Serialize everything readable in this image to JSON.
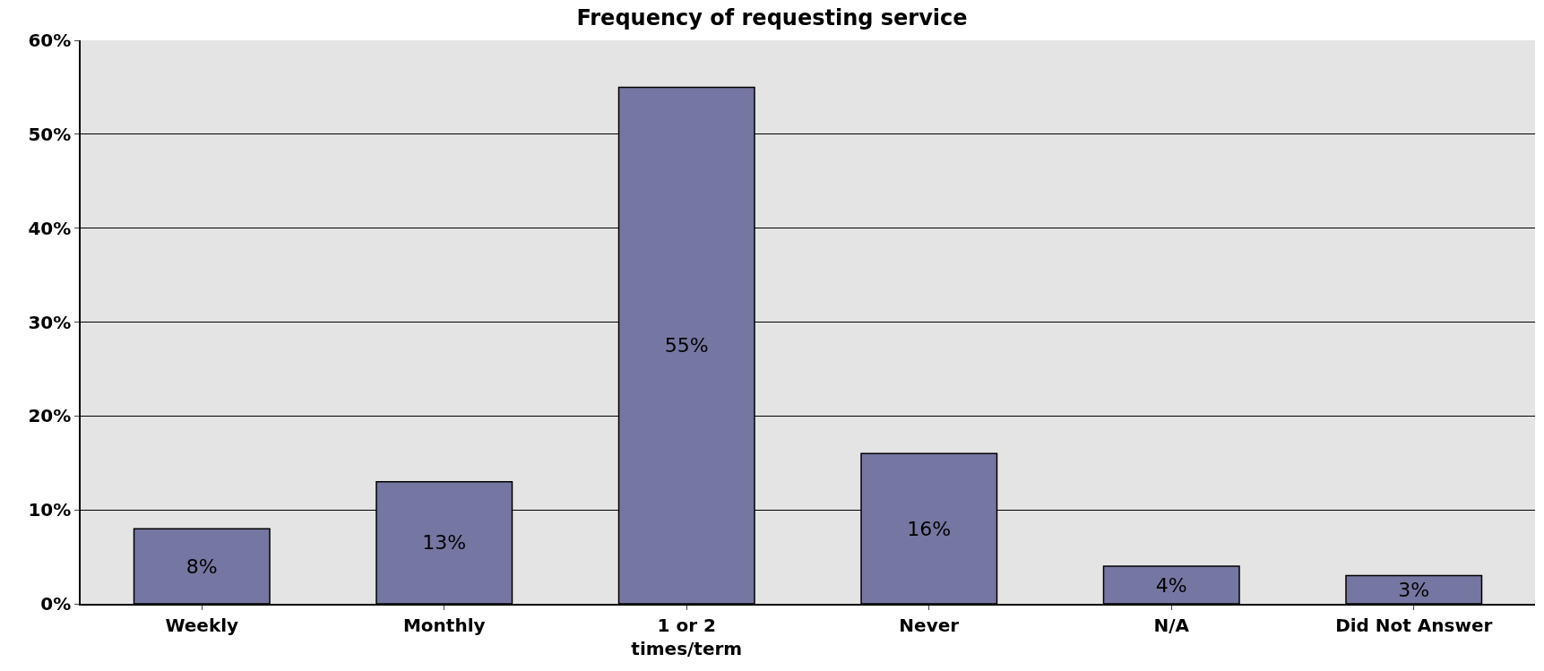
{
  "chart_data": {
    "type": "bar",
    "title": "Frequency of requesting service",
    "categories": [
      "Weekly",
      "Monthly",
      "1 or 2\ntimes/term",
      "Never",
      "N/A",
      "Did Not Answer"
    ],
    "values": [
      8,
      13,
      55,
      16,
      4,
      3
    ],
    "value_labels": [
      "8%",
      "13%",
      "55%",
      "16%",
      "4%",
      "3%"
    ],
    "color": "#7676a2",
    "ylim": [
      0,
      60
    ],
    "yticks": [
      {
        "value": 0,
        "label": "0%"
      },
      {
        "value": 10,
        "label": "10%"
      },
      {
        "value": 20,
        "label": "20%"
      },
      {
        "value": 30,
        "label": "30%"
      },
      {
        "value": 40,
        "label": "40%"
      },
      {
        "value": 50,
        "label": "50%"
      },
      {
        "value": 60,
        "label": "60%"
      }
    ],
    "grid": "y",
    "legend": false
  }
}
